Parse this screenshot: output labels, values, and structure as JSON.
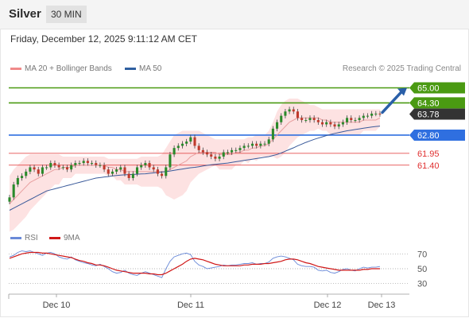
{
  "header": {
    "title": "Silver",
    "timeframe_button": "30 MIN"
  },
  "datetime": "Friday, December 12, 2025 9:11:12 AM CET",
  "legend": {
    "bollinger_label": "MA 20 + Bollinger Bands",
    "ma50_label": "MA 50",
    "credit": "Research © 2025 Trading Central"
  },
  "rsi_legend": {
    "rsi_label": "RSI",
    "ma_label": "9MA"
  },
  "colors": {
    "resistance": "#4a9a12",
    "pivot": "#2f6fe0",
    "support": "#e03030",
    "current": "#333333",
    "arrow": "#2a5fa8",
    "bollinger_fill": "#fde2e2",
    "ma20": "#e8a0a0",
    "ma50": "#3a5a9a",
    "candle_up": "#2a8a2a",
    "candle_down": "#c0392b",
    "rsi_line": "#6a8ad8",
    "rsi_ma": "#d01818"
  },
  "chart_data": [
    {
      "type": "candlestick",
      "title": "Silver",
      "x_tick_labels": [
        "Dec 10",
        "Dec 11",
        "Dec 12",
        "Dec 13"
      ],
      "ylim": [
        58.8,
        65.5
      ],
      "levels": [
        {
          "value": 65.0,
          "label": "65.00",
          "kind": "resistance"
        },
        {
          "value": 64.3,
          "label": "64.30",
          "kind": "resistance"
        },
        {
          "value": 63.78,
          "label": "63.78",
          "kind": "current"
        },
        {
          "value": 62.8,
          "label": "62.80",
          "kind": "pivot"
        },
        {
          "value": 61.95,
          "label": "61.95",
          "kind": "support"
        },
        {
          "value": 61.4,
          "label": "61.40",
          "kind": "support"
        }
      ],
      "close_series": [
        59.9,
        60.5,
        60.8,
        60.9,
        61.1,
        61.3,
        61.2,
        61.0,
        61.3,
        61.3,
        61.5,
        61.4,
        61.3,
        61.3,
        61.2,
        61.4,
        61.5,
        61.5,
        61.6,
        61.5,
        61.5,
        61.4,
        61.4,
        61.2,
        61.0,
        61.1,
        61.2,
        61.3,
        61.0,
        60.8,
        61.0,
        61.3,
        61.4,
        61.5,
        61.3,
        61.2,
        61.0,
        60.9,
        61.3,
        61.9,
        62.2,
        62.3,
        62.4,
        62.5,
        62.7,
        62.3,
        62.1,
        62.0,
        61.9,
        61.8,
        61.7,
        61.8,
        62.0,
        62.0,
        62.1,
        62.1,
        62.2,
        62.3,
        62.3,
        62.4,
        62.3,
        62.4,
        62.4,
        62.6,
        63.1,
        63.4,
        63.7,
        63.9,
        64.0,
        63.9,
        63.6,
        63.5,
        63.5,
        63.6,
        63.5,
        63.4,
        63.3,
        63.4,
        63.3,
        63.2,
        63.3,
        63.4,
        63.6,
        63.5,
        63.5,
        63.6,
        63.7,
        63.7,
        63.8,
        63.8,
        63.78
      ],
      "ma20": [
        59.6,
        59.8,
        60.0,
        60.2,
        60.4,
        60.6,
        60.7,
        60.8,
        60.9,
        61.0,
        61.1,
        61.2,
        61.2,
        61.3,
        61.3,
        61.3,
        61.4,
        61.4,
        61.4,
        61.4,
        61.4,
        61.4,
        61.4,
        61.4,
        61.3,
        61.3,
        61.2,
        61.2,
        61.1,
        61.1,
        61.1,
        61.1,
        61.1,
        61.1,
        61.1,
        61.1,
        61.1,
        61.1,
        61.1,
        61.2,
        61.3,
        61.4,
        61.5,
        61.6,
        61.8,
        61.9,
        62.0,
        62.0,
        62.0,
        62.0,
        62.0,
        61.9,
        61.9,
        61.9,
        61.9,
        62.0,
        62.0,
        62.1,
        62.1,
        62.2,
        62.2,
        62.3,
        62.3,
        62.4,
        62.6,
        62.8,
        63.0,
        63.2,
        63.4,
        63.5,
        63.6,
        63.6,
        63.6,
        63.6,
        63.6,
        63.6,
        63.5,
        63.5,
        63.4,
        63.4,
        63.4,
        63.4,
        63.4,
        63.4,
        63.4,
        63.4,
        63.5,
        63.5,
        63.5,
        63.5,
        63.6
      ],
      "bb_upper": [
        60.9,
        61.2,
        61.4,
        61.6,
        61.8,
        61.9,
        61.9,
        61.9,
        61.9,
        61.9,
        61.9,
        61.9,
        61.9,
        61.8,
        61.8,
        61.8,
        61.8,
        61.8,
        61.8,
        61.8,
        61.8,
        61.8,
        61.8,
        61.8,
        61.7,
        61.7,
        61.7,
        61.7,
        61.7,
        61.7,
        61.7,
        61.7,
        61.8,
        61.8,
        61.8,
        61.8,
        61.8,
        61.9,
        62.2,
        62.5,
        62.8,
        62.9,
        63.0,
        63.0,
        63.0,
        63.0,
        63.0,
        62.9,
        62.8,
        62.7,
        62.6,
        62.6,
        62.6,
        62.6,
        62.6,
        62.6,
        62.6,
        62.6,
        62.7,
        62.7,
        62.8,
        62.8,
        62.8,
        63.0,
        63.4,
        63.9,
        64.2,
        64.4,
        64.5,
        64.5,
        64.5,
        64.4,
        64.3,
        64.2,
        64.2,
        64.1,
        64.0,
        64.0,
        64.0,
        64.0,
        64.0,
        64.0,
        64.0,
        64.0,
        64.0,
        64.0,
        64.0,
        64.0,
        64.0,
        64.0,
        64.0
      ],
      "bb_lower": [
        58.3,
        58.4,
        58.6,
        58.8,
        59.0,
        59.3,
        59.5,
        59.7,
        59.9,
        60.1,
        60.3,
        60.5,
        60.5,
        60.8,
        60.8,
        60.8,
        61.0,
        61.0,
        61.0,
        61.0,
        61.0,
        61.0,
        61.0,
        61.0,
        60.9,
        60.9,
        60.7,
        60.7,
        60.5,
        60.5,
        60.5,
        60.5,
        60.4,
        60.4,
        60.4,
        60.4,
        60.4,
        60.3,
        60.0,
        59.9,
        59.8,
        59.9,
        60.0,
        60.2,
        60.6,
        60.8,
        61.0,
        61.1,
        61.2,
        61.3,
        61.4,
        61.2,
        61.2,
        61.2,
        61.2,
        61.4,
        61.4,
        61.6,
        61.5,
        61.7,
        61.6,
        61.8,
        61.8,
        61.8,
        61.8,
        61.7,
        61.8,
        62.0,
        62.3,
        62.5,
        62.7,
        62.8,
        62.9,
        63.0,
        63.0,
        63.1,
        63.0,
        63.0,
        62.8,
        62.8,
        62.8,
        62.8,
        62.8,
        62.8,
        62.8,
        62.8,
        63.0,
        63.0,
        63.0,
        63.0,
        63.2
      ],
      "ma50": [
        59.3,
        59.4,
        59.5,
        59.6,
        59.7,
        59.8,
        59.9,
        60.0,
        60.1,
        60.2,
        60.25,
        60.3,
        60.35,
        60.4,
        60.45,
        60.5,
        60.55,
        60.6,
        60.65,
        60.7,
        60.75,
        60.8,
        60.82,
        60.85,
        60.87,
        60.9,
        60.92,
        60.94,
        60.95,
        60.96,
        60.97,
        60.98,
        60.99,
        61.0,
        61.02,
        61.04,
        61.06,
        61.08,
        61.1,
        61.13,
        61.16,
        61.19,
        61.22,
        61.25,
        61.28,
        61.3,
        61.33,
        61.36,
        61.39,
        61.42,
        61.44,
        61.46,
        61.48,
        61.5,
        61.53,
        61.56,
        61.59,
        61.62,
        61.65,
        61.68,
        61.71,
        61.74,
        61.77,
        61.8,
        61.85,
        61.9,
        61.97,
        62.05,
        62.13,
        62.21,
        62.3,
        62.38,
        62.46,
        62.53,
        62.6,
        62.66,
        62.72,
        62.78,
        62.83,
        62.88,
        62.92,
        62.96,
        63.0,
        63.03,
        63.06,
        63.09,
        63.12,
        63.15,
        63.18,
        63.2,
        63.22
      ]
    },
    {
      "type": "line",
      "title": "RSI",
      "ylim": [
        20,
        80
      ],
      "y_ticks": [
        70,
        50,
        30
      ],
      "series": [
        {
          "name": "RSI",
          "values": [
            66,
            68,
            72,
            74,
            73,
            74,
            72,
            70,
            68,
            71,
            72,
            70,
            66,
            64,
            63,
            66,
            62,
            60,
            58,
            57,
            55,
            54,
            56,
            53,
            50,
            46,
            44,
            45,
            48,
            44,
            42,
            41,
            44,
            46,
            44,
            42,
            40,
            38,
            50,
            60,
            66,
            68,
            70,
            71,
            69,
            60,
            55,
            53,
            50,
            51,
            52,
            53,
            55,
            54,
            55,
            55,
            56,
            57,
            57,
            58,
            56,
            57,
            57,
            59,
            64,
            66,
            67,
            66,
            64,
            62,
            56,
            54,
            53,
            53,
            52,
            48,
            47,
            48,
            45,
            44,
            46,
            49,
            50,
            48,
            47,
            50,
            52,
            51,
            52,
            52,
            53
          ]
        },
        {
          "name": "9MA",
          "values": [
            64,
            66,
            68,
            70,
            71,
            72,
            72,
            72,
            71,
            71,
            70,
            69,
            68,
            67,
            66,
            65,
            63,
            61,
            60,
            58,
            57,
            55,
            55,
            54,
            52,
            50,
            48,
            47,
            46,
            45,
            44,
            44,
            44,
            44,
            43,
            43,
            42,
            42,
            44,
            47,
            50,
            53,
            56,
            60,
            63,
            64,
            63,
            62,
            60,
            58,
            56,
            55,
            54,
            54,
            54,
            54,
            54,
            55,
            55,
            56,
            56,
            56,
            57,
            57,
            58,
            59,
            60,
            62,
            63,
            63,
            62,
            60,
            58,
            57,
            55,
            53,
            52,
            51,
            50,
            49,
            48,
            48,
            48,
            48,
            48,
            48,
            49,
            49,
            50,
            50,
            50
          ]
        }
      ]
    }
  ]
}
